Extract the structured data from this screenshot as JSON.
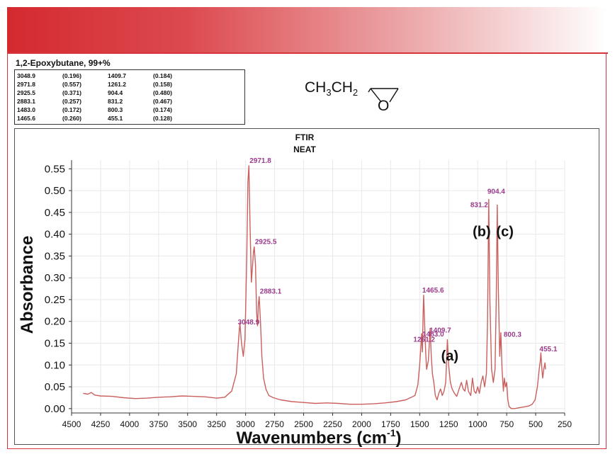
{
  "sample_name": "1,2-Epoxybutane, 99+%",
  "peak_table": [
    [
      "3048.9",
      "(0.196)",
      "1409.7",
      "(0.184)"
    ],
    [
      "2971.8",
      "(0.557)",
      "1261.2",
      "(0.158)"
    ],
    [
      "2925.5",
      "(0.371)",
      "904.4",
      "(0.480)"
    ],
    [
      "2883.1",
      "(0.257)",
      "831.2",
      "(0.467)"
    ],
    [
      "1483.0",
      "(0.172)",
      "800.3",
      "(0.174)"
    ],
    [
      "1465.6",
      "(0.260)",
      "455.1",
      "(0.128)"
    ]
  ],
  "structure": {
    "formula_parts": [
      "CH",
      "3",
      "CH",
      "2"
    ],
    "ring_atom": "O"
  },
  "colors": {
    "banner_start": "#d42a30",
    "frame": "#d7353b",
    "spectrum": "#c9605e",
    "peak_label": "#9a3b8c"
  },
  "chart_data": {
    "type": "line",
    "title": "FTIR",
    "subtitle": "NEAT",
    "xlabel": "Wavenumbers (cm",
    "xlabel_sup": "-1",
    "xlabel_end": ")",
    "ylabel": "Absorbance",
    "xlim": [
      4500,
      250
    ],
    "ylim": [
      -0.01,
      0.57
    ],
    "x_reversed": true,
    "grid": true,
    "x_ticks": [
      4500,
      4250,
      4000,
      3750,
      3500,
      3250,
      3000,
      2750,
      2500,
      2250,
      2000,
      1750,
      1500,
      1250,
      1000,
      750,
      500,
      250
    ],
    "y_ticks": [
      "0.00",
      "0.05",
      "0.10",
      "0.15",
      "0.20",
      "0.25",
      "0.30",
      "0.35",
      "0.40",
      "0.45",
      "0.50",
      "0.55"
    ],
    "peaks": [
      {
        "label": "2971.8",
        "x": 2971.8,
        "y": 0.557
      },
      {
        "label": "2925.5",
        "x": 2925.5,
        "y": 0.371
      },
      {
        "label": "2883.1",
        "x": 2883.1,
        "y": 0.257
      },
      {
        "label": "3048.9",
        "x": 3048.9,
        "y": 0.196
      },
      {
        "label": "1465.6",
        "x": 1465.6,
        "y": 0.26
      },
      {
        "label": "1483.0",
        "x": 1483.0,
        "y": 0.172
      },
      {
        "label": "1409.7",
        "x": 1409.7,
        "y": 0.184
      },
      {
        "label": "1261.2",
        "x": 1261.2,
        "y": 0.158
      },
      {
        "label": "904.4",
        "x": 904.4,
        "y": 0.48
      },
      {
        "label": "831.2",
        "x": 831.2,
        "y": 0.467
      },
      {
        "label": "800.3",
        "x": 800.3,
        "y": 0.174
      },
      {
        "label": "455.1",
        "x": 455.1,
        "y": 0.128
      }
    ],
    "annotations": [
      {
        "label": "(a)",
        "x": 1240,
        "y": 0.11
      },
      {
        "label": "(b)",
        "x": 965,
        "y": 0.395
      },
      {
        "label": "(c)",
        "x": 765,
        "y": 0.395
      }
    ],
    "spectrum": [
      [
        4400,
        0.035
      ],
      [
        4360,
        0.033
      ],
      [
        4330,
        0.037
      ],
      [
        4300,
        0.031
      ],
      [
        4250,
        0.029
      ],
      [
        4150,
        0.028
      ],
      [
        4050,
        0.025
      ],
      [
        3950,
        0.023
      ],
      [
        3850,
        0.024
      ],
      [
        3750,
        0.026
      ],
      [
        3650,
        0.027
      ],
      [
        3550,
        0.029
      ],
      [
        3450,
        0.028
      ],
      [
        3350,
        0.027
      ],
      [
        3250,
        0.024
      ],
      [
        3180,
        0.026
      ],
      [
        3120,
        0.04
      ],
      [
        3080,
        0.08
      ],
      [
        3060,
        0.16
      ],
      [
        3048.9,
        0.196
      ],
      [
        3035,
        0.15
      ],
      [
        3020,
        0.12
      ],
      [
        3005,
        0.16
      ],
      [
        2990,
        0.35
      ],
      [
        2980,
        0.52
      ],
      [
        2971.8,
        0.557
      ],
      [
        2962,
        0.42
      ],
      [
        2950,
        0.29
      ],
      [
        2940,
        0.33
      ],
      [
        2932,
        0.36
      ],
      [
        2925.5,
        0.371
      ],
      [
        2915,
        0.33
      ],
      [
        2905,
        0.22
      ],
      [
        2897,
        0.19
      ],
      [
        2890,
        0.24
      ],
      [
        2883.1,
        0.257
      ],
      [
        2872,
        0.2
      ],
      [
        2860,
        0.12
      ],
      [
        2845,
        0.07
      ],
      [
        2825,
        0.045
      ],
      [
        2800,
        0.03
      ],
      [
        2760,
        0.025
      ],
      [
        2700,
        0.02
      ],
      [
        2600,
        0.016
      ],
      [
        2500,
        0.014
      ],
      [
        2400,
        0.012
      ],
      [
        2300,
        0.013
      ],
      [
        2200,
        0.012
      ],
      [
        2100,
        0.01
      ],
      [
        2000,
        0.01
      ],
      [
        1900,
        0.011
      ],
      [
        1800,
        0.013
      ],
      [
        1700,
        0.016
      ],
      [
        1620,
        0.02
      ],
      [
        1580,
        0.025
      ],
      [
        1540,
        0.03
      ],
      [
        1515,
        0.055
      ],
      [
        1500,
        0.1
      ],
      [
        1490,
        0.14
      ],
      [
        1483.0,
        0.172
      ],
      [
        1476,
        0.13
      ],
      [
        1470,
        0.22
      ],
      [
        1465.6,
        0.26
      ],
      [
        1458,
        0.2
      ],
      [
        1448,
        0.13
      ],
      [
        1440,
        0.09
      ],
      [
        1425,
        0.11
      ],
      [
        1409.7,
        0.184
      ],
      [
        1400,
        0.12
      ],
      [
        1390,
        0.08
      ],
      [
        1378,
        0.06
      ],
      [
        1365,
        0.03
      ],
      [
        1350,
        0.02
      ],
      [
        1335,
        0.035
      ],
      [
        1320,
        0.045
      ],
      [
        1305,
        0.03
      ],
      [
        1290,
        0.04
      ],
      [
        1275,
        0.06
      ],
      [
        1261.2,
        0.158
      ],
      [
        1250,
        0.1
      ],
      [
        1235,
        0.06
      ],
      [
        1220,
        0.045
      ],
      [
        1200,
        0.035
      ],
      [
        1180,
        0.028
      ],
      [
        1160,
        0.045
      ],
      [
        1140,
        0.06
      ],
      [
        1125,
        0.045
      ],
      [
        1110,
        0.04
      ],
      [
        1095,
        0.065
      ],
      [
        1080,
        0.04
      ],
      [
        1060,
        0.03
      ],
      [
        1045,
        0.07
      ],
      [
        1030,
        0.04
      ],
      [
        1015,
        0.035
      ],
      [
        1000,
        0.05
      ],
      [
        985,
        0.035
      ],
      [
        970,
        0.06
      ],
      [
        955,
        0.075
      ],
      [
        940,
        0.05
      ],
      [
        925,
        0.08
      ],
      [
        915,
        0.2
      ],
      [
        904.4,
        0.48
      ],
      [
        895,
        0.25
      ],
      [
        880,
        0.09
      ],
      [
        865,
        0.06
      ],
      [
        850,
        0.09
      ],
      [
        840,
        0.25
      ],
      [
        831.2,
        0.467
      ],
      [
        822,
        0.28
      ],
      [
        810,
        0.12
      ],
      [
        800.3,
        0.174
      ],
      [
        790,
        0.09
      ],
      [
        778,
        0.04
      ],
      [
        770,
        0.07
      ],
      [
        760,
        0.05
      ],
      [
        750,
        0.06
      ],
      [
        740,
        0.02
      ],
      [
        730,
        0.005
      ],
      [
        710,
        0.0
      ],
      [
        680,
        0.0
      ],
      [
        640,
        0.002
      ],
      [
        600,
        0.004
      ],
      [
        560,
        0.006
      ],
      [
        530,
        0.01
      ],
      [
        505,
        0.02
      ],
      [
        485,
        0.05
      ],
      [
        470,
        0.09
      ],
      [
        460,
        0.11
      ],
      [
        455.1,
        0.128
      ],
      [
        448,
        0.095
      ],
      [
        440,
        0.07
      ],
      [
        430,
        0.09
      ],
      [
        420,
        0.105
      ],
      [
        415,
        0.09
      ]
    ]
  }
}
